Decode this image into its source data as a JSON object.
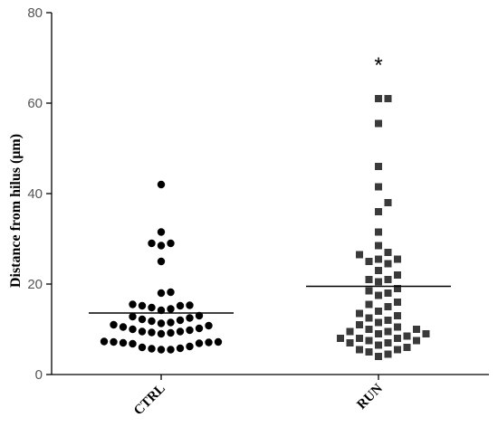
{
  "chart_data": {
    "type": "scatter",
    "ylabel": "Distance from hilus (μm)",
    "xlabel": "",
    "ylim": [
      0,
      80
    ],
    "yticks": [
      0,
      20,
      40,
      60,
      80
    ],
    "categories": [
      "CTRL",
      "RUN"
    ],
    "annotations": [
      {
        "category": "RUN",
        "text": "*"
      }
    ],
    "series": [
      {
        "category": "CTRL",
        "marker": "circle",
        "color": "#000000",
        "mean": 13.6,
        "values": [
          42,
          31.5,
          29,
          29,
          28.5,
          25,
          18.2,
          18,
          15.5,
          15.3,
          15.2,
          15.2,
          14.8,
          14.5,
          14.2,
          13,
          12.8,
          12.5,
          12.2,
          12,
          11.8,
          11.5,
          11.3,
          11,
          10.8,
          10.5,
          10.2,
          10,
          9.8,
          9.5,
          9.5,
          9.3,
          9.2,
          9,
          7.3,
          7.2,
          7.2,
          7.1,
          7,
          6.9,
          6.8,
          6.2,
          6,
          5.8,
          5.7,
          5.5,
          5.5
        ]
      },
      {
        "category": "RUN",
        "marker": "square",
        "color": "#3a3a3a",
        "mean": 19.5,
        "values": [
          61,
          61,
          55.5,
          46,
          41.5,
          38,
          36,
          31.5,
          28.5,
          27,
          26.5,
          25.5,
          25.5,
          25,
          24.5,
          23,
          22,
          21,
          21,
          20.5,
          19,
          18.5,
          18,
          17.5,
          16,
          15.5,
          15,
          14,
          13.5,
          13,
          12.5,
          12,
          11.5,
          11,
          10.5,
          10,
          10,
          9.5,
          9.5,
          9,
          9,
          8.5,
          8,
          8,
          8,
          7.5,
          7.5,
          7,
          7,
          6.5,
          6,
          5.5,
          5.5,
          5,
          4.5,
          4
        ]
      }
    ]
  }
}
